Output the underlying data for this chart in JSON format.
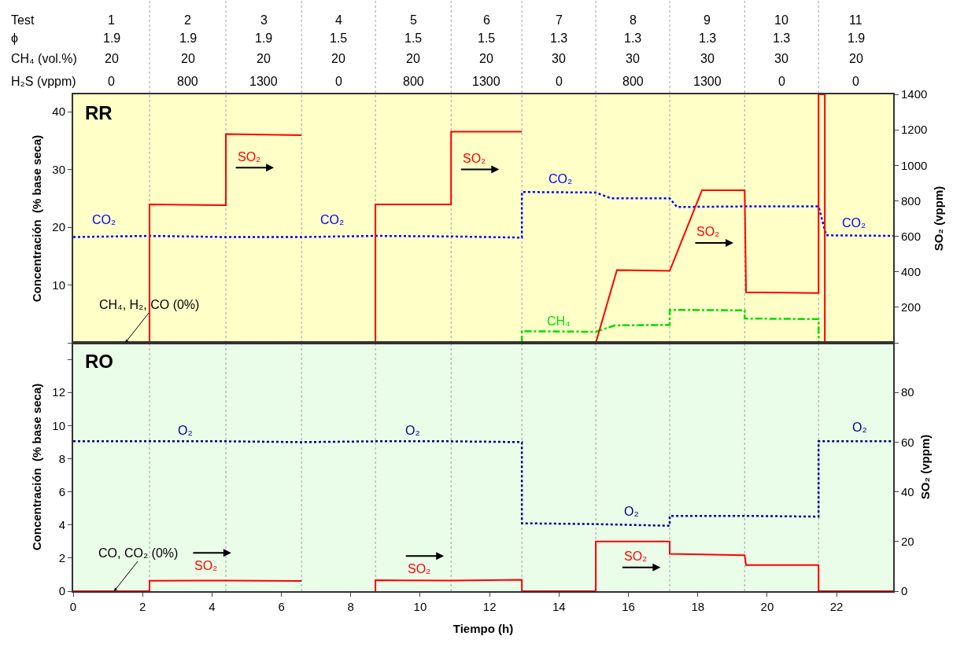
{
  "chart_data": [
    {
      "type": "line",
      "title": "RR",
      "ylabel": "Concentración  (% base seca)",
      "y2label": "SO₂ (vppm)",
      "xlim": [
        0,
        23.63
      ],
      "xticks": [
        0,
        2,
        4,
        6,
        8,
        10,
        12,
        14,
        16,
        18,
        20,
        22
      ],
      "tick_labels": "y",
      "ylim": [
        0,
        43
      ],
      "yticks": [
        {
          "value": 0,
          "label": null
        },
        10,
        20,
        30,
        40
      ],
      "y2lim": [
        0,
        1400
      ],
      "y2ticks": [
        {
          "value": 0,
          "label": null
        },
        200,
        400,
        600,
        800,
        1000,
        1200,
        1400
      ],
      "marker": "none",
      "ref_lines": [
        {
          "axis": "x",
          "value": 2.2,
          "color": "#a0a0a0",
          "line_style": "dotted"
        },
        {
          "axis": "x",
          "value": 4.4,
          "color": "#a0a0a0",
          "line_style": "dotted"
        },
        {
          "axis": "x",
          "value": 6.58,
          "color": "#a0a0a0",
          "line_style": "dotted"
        },
        {
          "axis": "x",
          "value": 8.71,
          "color": "#a0a0a0",
          "line_style": "dotted"
        },
        {
          "axis": "x",
          "value": 10.89,
          "color": "#a0a0a0",
          "line_style": "dotted"
        },
        {
          "axis": "x",
          "value": 12.93,
          "color": "#a0a0a0",
          "line_style": "dotted"
        },
        {
          "axis": "x",
          "value": 15.06,
          "color": "#a0a0a0",
          "line_style": "dotted"
        },
        {
          "axis": "x",
          "value": 17.19,
          "color": "#a0a0a0",
          "line_style": "dotted"
        },
        {
          "axis": "x",
          "value": 19.35,
          "color": "#a0a0a0",
          "line_style": "dotted"
        },
        {
          "axis": "x",
          "value": 21.48,
          "color": "#a0a0a0",
          "line_style": "dotted"
        }
      ],
      "series": [
        {
          "name": "CO₂",
          "color": "#0000ff",
          "line_style": "dotted",
          "x": [
            0,
            2.2,
            4.4,
            6.58,
            8.71,
            10.89,
            12.93,
            12.93,
            15.06,
            15.5,
            17.19,
            17.4,
            19.35,
            21.48,
            21.7,
            23.63
          ],
          "values": [
            18.3,
            18.5,
            18.3,
            18.3,
            18.5,
            18.4,
            18.2,
            26.1,
            26.0,
            25.0,
            25.0,
            23.5,
            23.6,
            23.6,
            18.6,
            18.5
          ]
        },
        {
          "name": "CH₄",
          "color": "#00dd00",
          "line_style": "dashed",
          "x": [
            12.93,
            12.93,
            15.06,
            15.6,
            17.19,
            17.19,
            19.35,
            19.35,
            21.48,
            21.48
          ],
          "values": [
            0,
            2.0,
            1.9,
            3.0,
            3.1,
            5.7,
            5.6,
            4.2,
            4.1,
            0
          ]
        },
        {
          "name": "SO₂",
          "color": "#ff0000",
          "axis": "y2",
          "line_style": "solid",
          "x": [
            0,
            2.2,
            2.2,
            4.4,
            4.4,
            6.58,
            6.6,
            8.71,
            8.71,
            10.89,
            10.89,
            12.93,
            13.0,
            15.06,
            15.67,
            17.19,
            18.12,
            19.35,
            19.39,
            21.48,
            21.48,
            21.66,
            21.66,
            23.63
          ],
          "values": [
            0,
            0,
            780,
            775,
            1176,
            1170,
            null,
            0,
            780,
            780,
            1190,
            1190,
            null,
            0,
            410,
            405,
            860,
            860,
            285,
            280,
            1400,
            1400,
            0,
            0
          ]
        }
      ],
      "annotations": [
        "Test",
        "1",
        "2",
        "3",
        "4",
        "5",
        "6",
        "7",
        "8",
        "9",
        "10",
        "11",
        "ϕ",
        "1.9",
        "1.9",
        "1.9",
        "1.5",
        "1.5",
        "1.5",
        "1.3",
        "1.3",
        "1.3",
        "1.3",
        "1.9",
        "CH₄ (vol.%)",
        "20",
        "20",
        "20",
        "20",
        "20",
        "20",
        "30",
        "30",
        "30",
        "30",
        "20",
        "H₂S (vppm)",
        "0",
        "800",
        "1300",
        "0",
        "800",
        "1300",
        "0",
        "800",
        "1300",
        "0",
        "0",
        "SO₂",
        "SO₂",
        "CO₂",
        "CO₂",
        "CO₂",
        {
          "text": "CH₄, H₂, CO (0%)",
          "x": 1.5,
          "y": 0
        }
      ]
    },
    {
      "type": "line",
      "title": "RO",
      "xlabel": "Tiempo (h)",
      "ylabel": "Concentración  (% base seca)",
      "y2label": "SO₂ (vppm)",
      "xlim": [
        0,
        23.63
      ],
      "xticks": [
        0,
        2,
        4,
        6,
        8,
        10,
        12,
        14,
        16,
        18,
        20,
        22
      ],
      "ylim": [
        0,
        15
      ],
      "yticks": [
        0,
        2,
        4,
        6,
        8,
        10,
        12,
        {
          "value": 14,
          "label": null
        }
      ],
      "y2lim": [
        0,
        100
      ],
      "y2ticks": [
        0,
        20,
        40,
        60,
        80,
        {
          "value": 100,
          "label": null
        }
      ],
      "marker": "none",
      "ref_lines": [
        {
          "axis": "x",
          "value": 2.2,
          "color": "#a0a0a0",
          "line_style": "dotted"
        },
        {
          "axis": "x",
          "value": 4.4,
          "color": "#a0a0a0",
          "line_style": "dotted"
        },
        {
          "axis": "x",
          "value": 6.58,
          "color": "#a0a0a0",
          "line_style": "dotted"
        },
        {
          "axis": "x",
          "value": 8.71,
          "color": "#a0a0a0",
          "line_style": "dotted"
        },
        {
          "axis": "x",
          "value": 10.89,
          "color": "#a0a0a0",
          "line_style": "dotted"
        },
        {
          "axis": "x",
          "value": 12.93,
          "color": "#a0a0a0",
          "line_style": "dotted"
        },
        {
          "axis": "x",
          "value": 15.06,
          "color": "#a0a0a0",
          "line_style": "dotted"
        },
        {
          "axis": "x",
          "value": 17.19,
          "color": "#a0a0a0",
          "line_style": "dotted"
        },
        {
          "axis": "x",
          "value": 19.35,
          "color": "#a0a0a0",
          "line_style": "dotted"
        },
        {
          "axis": "x",
          "value": 21.48,
          "color": "#a0a0a0",
          "line_style": "dotted"
        }
      ],
      "series": [
        {
          "name": "O₂",
          "color": "#000080",
          "line_style": "dotted",
          "x": [
            0,
            2.2,
            4.4,
            6.58,
            8.71,
            10.89,
            12.93,
            12.93,
            15.06,
            17.19,
            17.19,
            19.35,
            21.48,
            21.48,
            23.63
          ],
          "values": [
            9.05,
            9.05,
            9.05,
            9.0,
            9.05,
            9.05,
            9.0,
            4.1,
            4.05,
            3.95,
            4.55,
            4.55,
            4.5,
            9.05,
            9.05
          ]
        },
        {
          "name": "SO₂",
          "color": "#ff0000",
          "axis": "y2",
          "line_style": "solid",
          "x": [
            0,
            2.2,
            2.2,
            4.4,
            6.58,
            6.6,
            8.71,
            8.71,
            10.89,
            12.93,
            12.93,
            15.06,
            15.06,
            17.19,
            17.19,
            19.35,
            19.39,
            21.48,
            21.48,
            23.63
          ],
          "values": [
            0,
            0,
            4.2,
            4.3,
            4.1,
            null,
            0,
            4.4,
            4.3,
            4.6,
            0,
            0,
            20,
            20,
            15,
            14.5,
            10.5,
            10.5,
            0,
            0
          ]
        }
      ],
      "annotations": [
        "SO₂",
        "SO₂",
        "O₂",
        "O₂",
        "O₂",
        {
          "text": "CO, CO₂ (0%)",
          "x": 1.18,
          "y": 0
        }
      ]
    }
  ]
}
